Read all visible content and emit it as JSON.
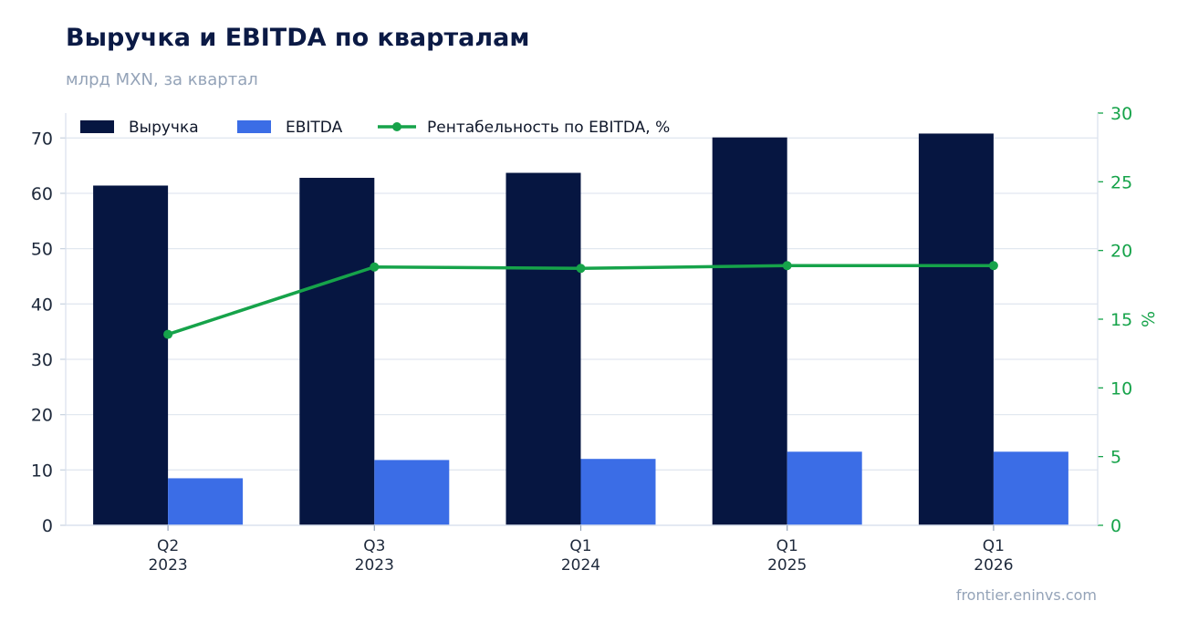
{
  "header": {
    "title": "Выручка и EBITDA по кварталам",
    "subtitle": "млрд MXN, за квартал"
  },
  "footer": {
    "source": "frontier.eninvs.com"
  },
  "colors": {
    "revenue": "#061641",
    "ebitda": "#3b6de6",
    "margin": "#16a34a",
    "grid": "#e2e8f0",
    "axis_text": "#1e293b",
    "right_axis": "#16a34a"
  },
  "chart_data": {
    "type": "bar",
    "categories": [
      "Q2 2023",
      "Q3 2023",
      "Q1 2024",
      "Q1 2025",
      "Q1 2026"
    ],
    "category_labels": [
      [
        "Q2",
        "2023"
      ],
      [
        "Q3",
        "2023"
      ],
      [
        "Q1",
        "2024"
      ],
      [
        "Q1",
        "2025"
      ],
      [
        "Q1",
        "2026"
      ]
    ],
    "series": [
      {
        "name": "Выручка",
        "type": "bar",
        "axis": "left",
        "values": [
          61.4,
          62.8,
          63.7,
          70.1,
          70.8
        ]
      },
      {
        "name": "EBITDA",
        "type": "bar",
        "axis": "left",
        "values": [
          8.5,
          11.8,
          12.0,
          13.3,
          13.3
        ]
      },
      {
        "name": "Рентабельность по EBITDA, %",
        "type": "line",
        "axis": "right",
        "values": [
          13.9,
          18.8,
          18.7,
          18.9,
          18.9
        ]
      }
    ],
    "ylim": [
      0,
      74.5
    ],
    "yticks": [
      0,
      10,
      20,
      30,
      40,
      50,
      60,
      70
    ],
    "y2lim": [
      0,
      30
    ],
    "y2ticks": [
      0,
      5,
      10,
      15,
      20,
      25,
      30
    ],
    "y2label": "%",
    "grid": true,
    "legend": "top-left"
  }
}
